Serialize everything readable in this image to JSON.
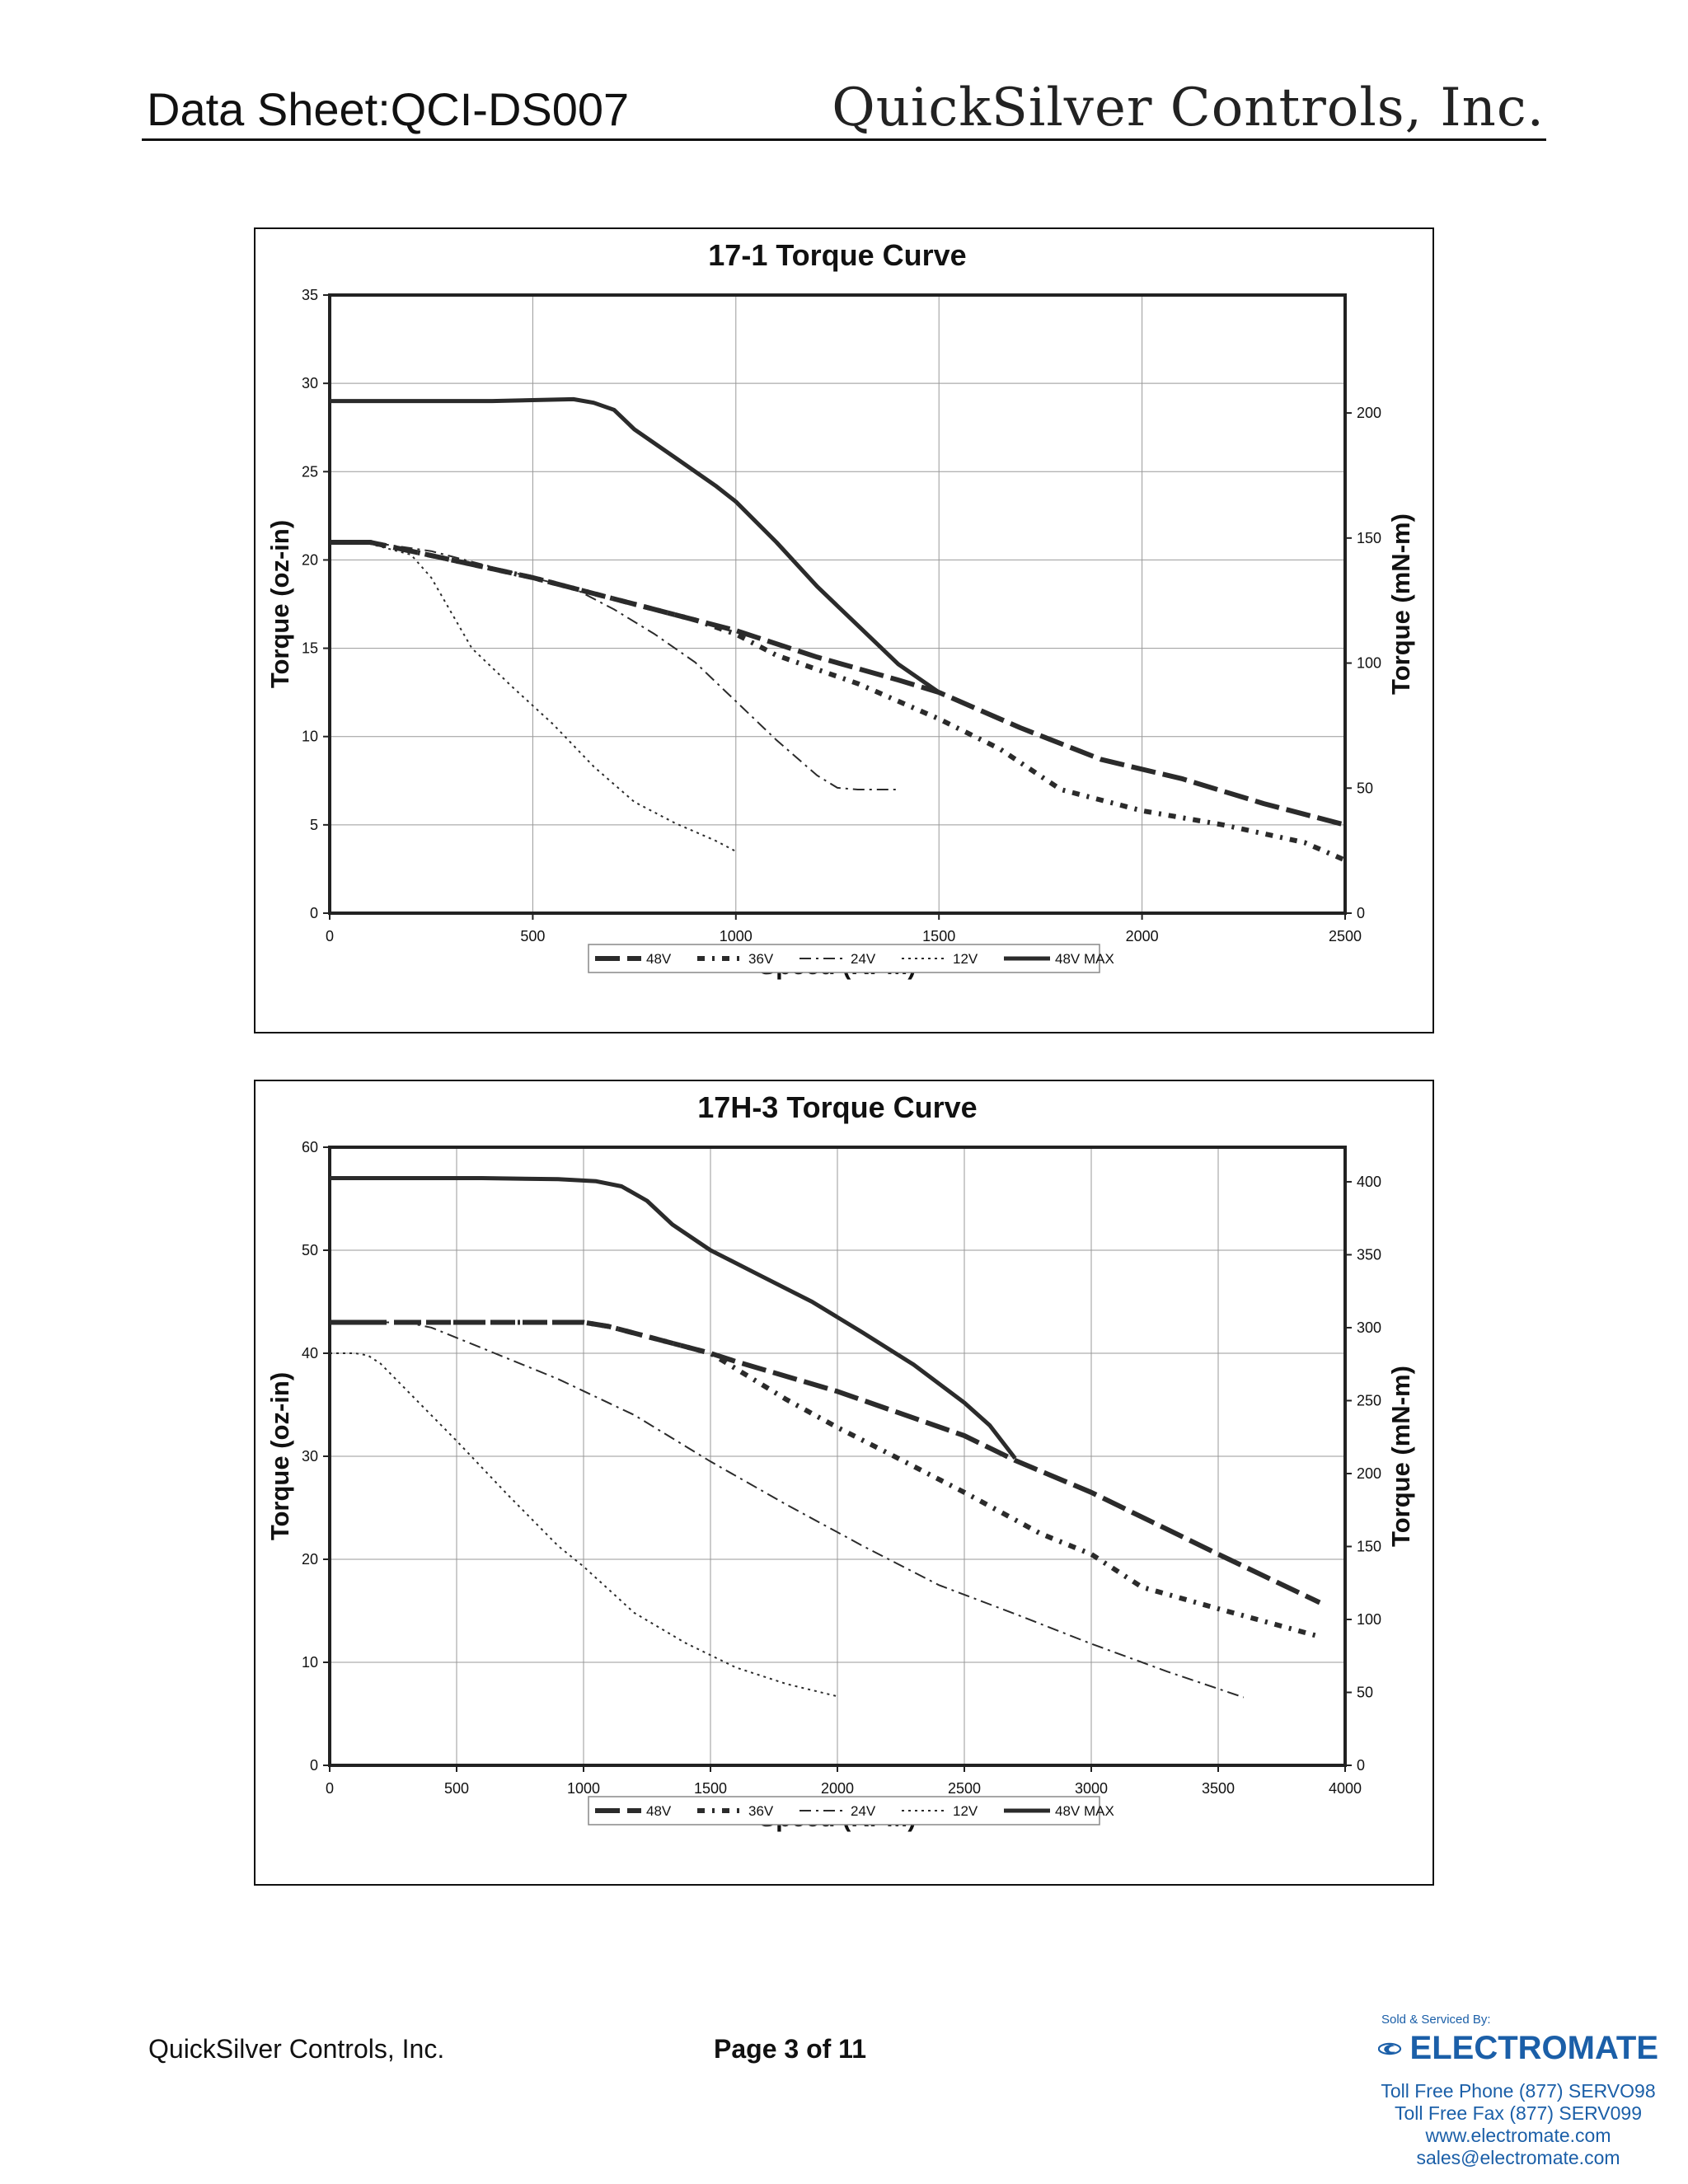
{
  "header": {
    "doc_id": "Data Sheet:QCI-DS007",
    "company": "QuickSilver Controls, Inc."
  },
  "legend_labels": [
    "48V",
    "36V",
    "24V",
    "12V",
    "48V MAX"
  ],
  "chart_data": [
    {
      "type": "line",
      "title": "17-1 Torque Curve",
      "xlabel": "Speed (RPM)",
      "ylabel": "Torque (oz-in)",
      "y2label": "Torque (mN-m)",
      "xlim": [
        0,
        2500
      ],
      "ylim": [
        0,
        35
      ],
      "y2lim": [
        0,
        247.16
      ],
      "xticks": [
        0,
        500,
        1000,
        1500,
        2000,
        2500
      ],
      "yticks": [
        0,
        5,
        10,
        15,
        20,
        25,
        30,
        35
      ],
      "y2ticks": [
        0,
        50,
        100,
        150,
        200
      ],
      "grid": true,
      "legend": "bottom",
      "series": [
        {
          "name": "48V",
          "x": [
            0,
            100,
            300,
            500,
            700,
            900,
            1000,
            1200,
            1400,
            1500,
            1700,
            1900,
            2100,
            2300,
            2500
          ],
          "y": [
            21,
            21,
            20,
            19,
            17.8,
            16.6,
            16,
            14.5,
            13.2,
            12.5,
            10.5,
            8.7,
            7.6,
            6.2,
            5
          ]
        },
        {
          "name": "36V",
          "x": [
            0,
            100,
            300,
            500,
            700,
            900,
            1000,
            1100,
            1300,
            1500,
            1650,
            1800,
            2000,
            2200,
            2400,
            2500
          ],
          "y": [
            21,
            21,
            20,
            19,
            17.8,
            16.6,
            15.8,
            14.6,
            13,
            11,
            9.3,
            7,
            5.8,
            5,
            4,
            3
          ]
        },
        {
          "name": "24V",
          "x": [
            0,
            100,
            250,
            400,
            600,
            700,
            800,
            900,
            1000,
            1100,
            1200,
            1250,
            1300,
            1350,
            1400
          ],
          "y": [
            21,
            21,
            20.5,
            19.6,
            18.4,
            17.2,
            15.8,
            14.2,
            12,
            9.8,
            7.8,
            7.1,
            7,
            7,
            7
          ]
        },
        {
          "name": "12V",
          "x": [
            0,
            100,
            200,
            250,
            300,
            350,
            450,
            550,
            650,
            750,
            850,
            950,
            1000
          ],
          "y": [
            21,
            20.9,
            20.3,
            19,
            17,
            15,
            12.8,
            10.7,
            8.3,
            6.3,
            5.1,
            4.1,
            3.5
          ]
        },
        {
          "name": "48V MAX",
          "x": [
            0,
            300,
            400,
            600,
            650,
            700,
            750,
            850,
            950,
            1000,
            1100,
            1200,
            1300,
            1400,
            1500
          ],
          "y": [
            29,
            29,
            29,
            29.1,
            28.9,
            28.5,
            27.4,
            25.8,
            24.2,
            23.3,
            21,
            18.5,
            16.3,
            14.1,
            12.5
          ]
        }
      ]
    },
    {
      "type": "line",
      "title": "17H-3 Torque Curve",
      "xlabel": "Speed (RPM)",
      "ylabel": "Torque (oz-in)",
      "y2label": "Torque (mN-m)",
      "xlim": [
        0,
        4000
      ],
      "ylim": [
        0,
        60
      ],
      "y2lim": [
        0,
        423.7
      ],
      "xticks": [
        0,
        500,
        1000,
        1500,
        2000,
        2500,
        3000,
        3500,
        4000
      ],
      "yticks": [
        0,
        10,
        20,
        30,
        40,
        50,
        60
      ],
      "y2ticks": [
        0,
        50,
        100,
        150,
        200,
        250,
        300,
        350,
        400
      ],
      "grid": true,
      "legend": "bottom",
      "series": [
        {
          "name": "48V",
          "x": [
            0,
            500,
            1000,
            1100,
            1500,
            1600,
            2000,
            2500,
            2700,
            3000,
            3500,
            3900
          ],
          "y": [
            43,
            43,
            43,
            42.6,
            40,
            39.2,
            36.3,
            32,
            29.6,
            26.5,
            20.5,
            15.8
          ]
        },
        {
          "name": "36V",
          "x": [
            0,
            500,
            1000,
            1100,
            1500,
            1600,
            1800,
            2000,
            2200,
            2500,
            2800,
            3000,
            3200,
            3500,
            3900
          ],
          "y": [
            43,
            43,
            43,
            42.6,
            40,
            38.5,
            35.5,
            32.8,
            30.3,
            26.5,
            22.5,
            20.5,
            17.3,
            15.2,
            12.5
          ]
        },
        {
          "name": "24V",
          "x": [
            0,
            300,
            400,
            600,
            900,
            1200,
            1500,
            1800,
            2100,
            2400,
            2700,
            3000,
            3300,
            3600
          ],
          "y": [
            43,
            43,
            42.5,
            40.5,
            37.5,
            34,
            29.5,
            25.3,
            21.3,
            17.5,
            14.7,
            11.8,
            9.1,
            6.6
          ]
        },
        {
          "name": "12V",
          "x": [
            0,
            100,
            150,
            200,
            300,
            500,
            700,
            900,
            1000,
            1200,
            1400,
            1600,
            1800,
            2000
          ],
          "y": [
            40,
            40,
            39.8,
            39,
            36.5,
            31.5,
            26.3,
            21.3,
            19.3,
            14.8,
            11.9,
            9.5,
            7.9,
            6.7
          ]
        },
        {
          "name": "48V MAX",
          "x": [
            0,
            300,
            600,
            900,
            1050,
            1150,
            1250,
            1350,
            1500,
            1700,
            1900,
            2100,
            2300,
            2500,
            2600,
            2650,
            2700
          ],
          "y": [
            57,
            57,
            57,
            56.9,
            56.7,
            56.2,
            54.8,
            52.5,
            50,
            47.5,
            45,
            42,
            38.9,
            35.2,
            33,
            31.4,
            29.8
          ]
        }
      ]
    }
  ],
  "footer": {
    "company": "QuickSilver Controls, Inc.",
    "page": "Page 3 of 11"
  },
  "distributor": {
    "sold_by": "Sold & Serviced By:",
    "name": "ELECTROMATE",
    "phone": "Toll Free Phone  (877) SERVO98",
    "fax": "Toll Free Fax  (877) SERV099",
    "web": "www.electromate.com",
    "email": "sales@electromate.com",
    "color": "#1b5fa8"
  }
}
